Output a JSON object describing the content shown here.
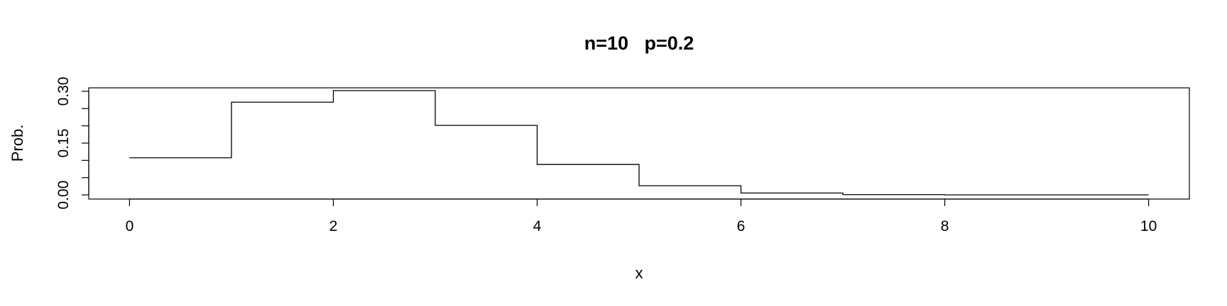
{
  "chart_data": {
    "type": "line",
    "subtype": "step",
    "title": "n=10   p=0.2",
    "xlabel": "x",
    "ylabel": "Prob.",
    "xlim": [
      -0.4,
      10.4
    ],
    "ylim": [
      -0.012,
      0.31
    ],
    "x_ticks": [
      0,
      2,
      4,
      6,
      8,
      10
    ],
    "x_tick_labels": [
      "0",
      "2",
      "4",
      "6",
      "8",
      "10"
    ],
    "y_ticks": [
      0.0,
      0.05,
      0.1,
      0.15,
      0.2,
      0.25,
      0.3
    ],
    "y_tick_labels": [
      "0.00",
      "",
      "",
      "0.15",
      "",
      "",
      "0.30"
    ],
    "grid": false,
    "legend": "none",
    "line_color": "#000000",
    "series": [
      {
        "x": [
          0,
          1,
          2,
          3,
          4,
          5,
          6,
          7,
          8,
          9,
          10
        ],
        "values": [
          0.1074,
          0.2684,
          0.302,
          0.2013,
          0.0881,
          0.0264,
          0.0055,
          0.0008,
          0.0001,
          0.0,
          0.0
        ]
      }
    ]
  }
}
